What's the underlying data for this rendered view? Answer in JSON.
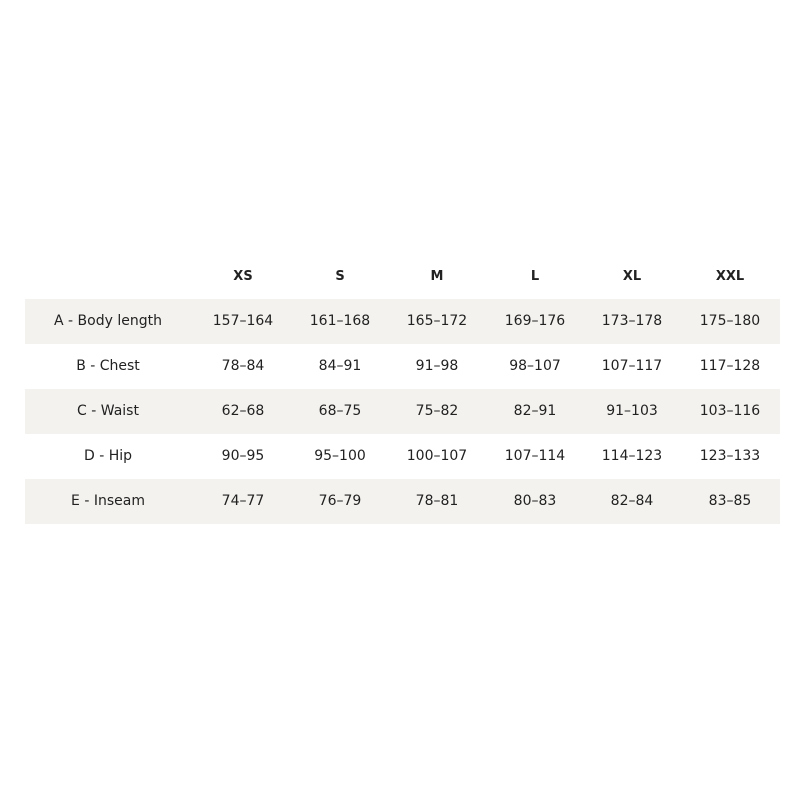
{
  "table": {
    "header": [
      "XS",
      "S",
      "M",
      "L",
      "XL",
      "XXL"
    ],
    "rows": [
      {
        "label": "A - Body length",
        "cells": [
          "157–164",
          "161–168",
          "165–172",
          "169–176",
          "173–178",
          "175–180"
        ]
      },
      {
        "label": "B - Chest",
        "cells": [
          "78–84",
          "84–91",
          "91–98",
          "98–107",
          "107–117",
          "117–128"
        ]
      },
      {
        "label": "C - Waist",
        "cells": [
          "62–68",
          "68–75",
          "75–82",
          "82–91",
          "91–103",
          "103–116"
        ]
      },
      {
        "label": "D - Hip",
        "cells": [
          "90–95",
          "95–100",
          "100–107",
          "107–114",
          "114–123",
          "123–133"
        ]
      },
      {
        "label": "E - Inseam",
        "cells": [
          "74–77",
          "76–79",
          "78–81",
          "80–83",
          "82–84",
          "83–85"
        ]
      }
    ]
  }
}
